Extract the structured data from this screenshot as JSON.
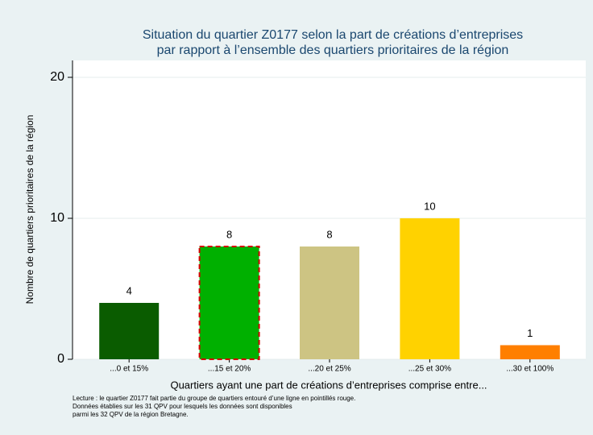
{
  "chart_data": {
    "type": "bar",
    "title": [
      "Situation du quartier Z0177 selon la part de créations d’entreprises",
      "par rapport à l’ensemble des quartiers prioritaires de la région"
    ],
    "y_label": "Nombre de quartiers prioritaires de la région",
    "x_label": "Quartiers ayant une part de créations d’entreprises comprise entre...",
    "categories": [
      "...0 et 15%",
      "...15 et 20%",
      "...20 et 25%",
      "...25 et 30%",
      "...30 et 100%"
    ],
    "values": [
      4,
      8,
      8,
      10,
      1
    ],
    "colors": [
      "#0a5c00",
      "#00b000",
      "#cdc483",
      "#ffd200",
      "#ff7f00"
    ],
    "highlighted": [
      false,
      true,
      false,
      false,
      false
    ],
    "highlight_color": "#d40000",
    "ylim": [
      0,
      21.2
    ],
    "yticks": [
      0,
      10,
      20
    ],
    "grid": true,
    "notes": [
      "Lecture : le quartier Z0177 fait partie du groupe de quartiers entouré d’une ligne en pointillés rouge.",
      "Données établies sur les 31 QPV pour lesquels les données sont disponibles",
      "parmi les 32 QPV de la région Bretagne."
    ]
  }
}
